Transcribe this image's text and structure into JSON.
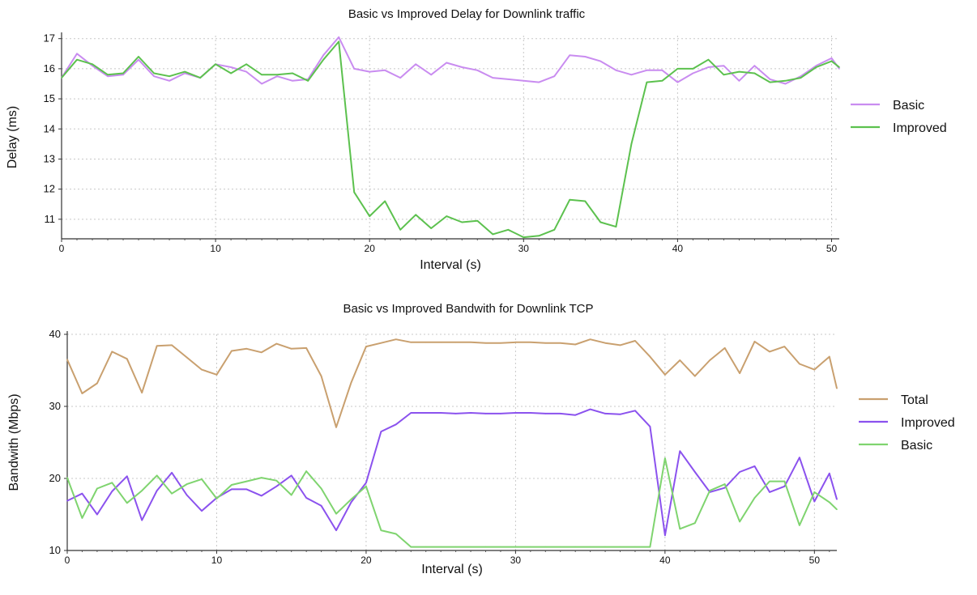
{
  "charts": [
    {
      "id": "delay",
      "title": "Basic vs Improved Delay for Downlink traffic",
      "xlabel": "Interval (s)",
      "ylabel": "Delay (ms)"
    },
    {
      "id": "bandwidth",
      "title": "Basic  vs Improved Bandwith for Downlink TCP",
      "xlabel": "Interval (s)",
      "ylabel": "Bandwith (Mbps)"
    }
  ],
  "chart_data": [
    {
      "type": "line",
      "title": "Basic vs Improved Delay for Downlink traffic",
      "xlabel": "Interval (s)",
      "ylabel": "Delay (ms)",
      "xlim": [
        0,
        50.5
      ],
      "ylim": [
        10.35,
        17.1
      ],
      "xticks": [
        0,
        10,
        20,
        30,
        40,
        50
      ],
      "yticks": [
        11,
        12,
        13,
        14,
        15,
        16,
        17
      ],
      "grid": true,
      "legend_position": "right",
      "x": [
        0,
        1,
        2,
        3,
        4,
        5,
        6,
        7,
        8,
        9,
        10,
        11,
        12,
        13,
        14,
        15,
        16,
        17,
        18,
        19,
        20,
        21,
        22,
        23,
        24,
        25,
        26,
        27,
        28,
        29,
        30,
        31,
        32,
        33,
        34,
        35,
        36,
        37,
        38,
        39,
        40,
        41,
        42,
        43,
        44,
        45,
        46,
        47,
        48,
        49,
        50,
        50.5
      ],
      "series": [
        {
          "name": "Basic",
          "color": "#c98cf0",
          "values": [
            15.7,
            16.5,
            16.1,
            15.75,
            15.8,
            16.3,
            15.75,
            15.6,
            15.85,
            15.7,
            16.15,
            16.05,
            15.9,
            15.5,
            15.75,
            15.6,
            15.65,
            16.45,
            17.05,
            16.0,
            15.9,
            15.95,
            15.7,
            16.15,
            15.8,
            16.2,
            16.05,
            15.95,
            15.7,
            15.65,
            15.6,
            15.55,
            15.75,
            16.45,
            16.4,
            16.25,
            15.95,
            15.8,
            15.95,
            15.95,
            15.55,
            15.85,
            16.05,
            16.1,
            15.6,
            16.1,
            15.65,
            15.5,
            15.75,
            16.1,
            16.35,
            16.0
          ]
        },
        {
          "name": "Improved",
          "color": "#5cc14e",
          "values": [
            15.7,
            16.3,
            16.15,
            15.8,
            15.85,
            16.4,
            15.85,
            15.75,
            15.9,
            15.7,
            16.15,
            15.85,
            16.15,
            15.8,
            15.8,
            15.85,
            15.6,
            16.3,
            16.9,
            11.9,
            11.1,
            11.6,
            10.65,
            11.15,
            10.7,
            11.1,
            10.9,
            10.95,
            10.5,
            10.65,
            10.4,
            10.45,
            10.65,
            11.65,
            11.6,
            10.9,
            10.75,
            13.5,
            15.55,
            15.6,
            16.0,
            16.0,
            16.3,
            15.8,
            15.9,
            15.85,
            15.55,
            15.6,
            15.7,
            16.05,
            16.25,
            16.05
          ]
        }
      ]
    },
    {
      "type": "line",
      "title": "Basic  vs Improved Bandwith for Downlink TCP",
      "xlabel": "Interval (s)",
      "ylabel": "Bandwith (Mbps)",
      "xlim": [
        0,
        51.5
      ],
      "ylim": [
        10,
        40
      ],
      "xticks": [
        0,
        10,
        20,
        30,
        40,
        50
      ],
      "yticks": [
        10,
        20,
        30,
        40
      ],
      "grid": true,
      "legend_position": "right",
      "x": [
        0,
        1,
        2,
        3,
        4,
        5,
        6,
        7,
        8,
        9,
        10,
        11,
        12,
        13,
        14,
        15,
        16,
        17,
        18,
        19,
        20,
        21,
        22,
        23,
        24,
        25,
        26,
        27,
        28,
        29,
        30,
        31,
        32,
        33,
        34,
        35,
        36,
        37,
        38,
        39,
        40,
        41,
        42,
        43,
        44,
        45,
        46,
        47,
        48,
        49,
        50,
        51,
        51.5
      ],
      "series": [
        {
          "name": "Total",
          "color": "#c9a06f",
          "values": [
            36.5,
            31.8,
            33.2,
            37.6,
            36.6,
            31.9,
            38.4,
            38.5,
            36.8,
            35.1,
            34.4,
            37.7,
            38.0,
            37.5,
            38.7,
            38.0,
            38.1,
            34.2,
            27.1,
            33.3,
            38.3,
            38.8,
            39.3,
            38.9,
            38.9,
            38.9,
            38.9,
            38.9,
            38.8,
            38.8,
            38.9,
            38.9,
            38.8,
            38.8,
            38.6,
            39.3,
            38.8,
            38.5,
            39.1,
            36.9,
            34.4,
            36.4,
            34.2,
            36.4,
            38.1,
            34.6,
            39.0,
            37.6,
            38.3,
            35.9,
            35.1,
            36.9,
            32.5
          ]
        },
        {
          "name": "Improved",
          "color": "#8b52ee",
          "values": [
            16.9,
            17.9,
            15.0,
            18.2,
            20.3,
            14.2,
            18.3,
            20.8,
            17.7,
            15.5,
            17.3,
            18.5,
            18.5,
            17.6,
            18.9,
            20.4,
            17.3,
            16.2,
            12.8,
            16.7,
            19.4,
            26.5,
            27.5,
            29.1,
            29.1,
            29.1,
            29.0,
            29.1,
            29.0,
            29.0,
            29.1,
            29.1,
            29.0,
            29.0,
            28.8,
            29.6,
            29.0,
            28.9,
            29.4,
            27.2,
            12.1,
            23.8,
            20.9,
            18.1,
            18.7,
            20.9,
            21.7,
            18.1,
            18.9,
            22.9,
            16.8,
            20.7,
            17.1
          ]
        },
        {
          "name": "Basic",
          "color": "#7fd46f",
          "values": [
            20.1,
            14.5,
            18.6,
            19.4,
            16.6,
            18.3,
            20.4,
            17.9,
            19.2,
            19.9,
            17.2,
            19.1,
            19.6,
            20.1,
            19.7,
            17.7,
            21.0,
            18.6,
            15.1,
            17.1,
            18.9,
            12.8,
            12.3,
            10.5,
            10.5,
            10.5,
            10.5,
            10.5,
            10.5,
            10.5,
            10.5,
            10.5,
            10.5,
            10.5,
            10.5,
            10.5,
            10.5,
            10.5,
            10.5,
            10.5,
            22.8,
            13.0,
            13.8,
            18.3,
            19.2,
            14.0,
            17.3,
            19.6,
            19.6,
            13.5,
            18.1,
            16.7,
            15.7
          ]
        }
      ]
    }
  ]
}
